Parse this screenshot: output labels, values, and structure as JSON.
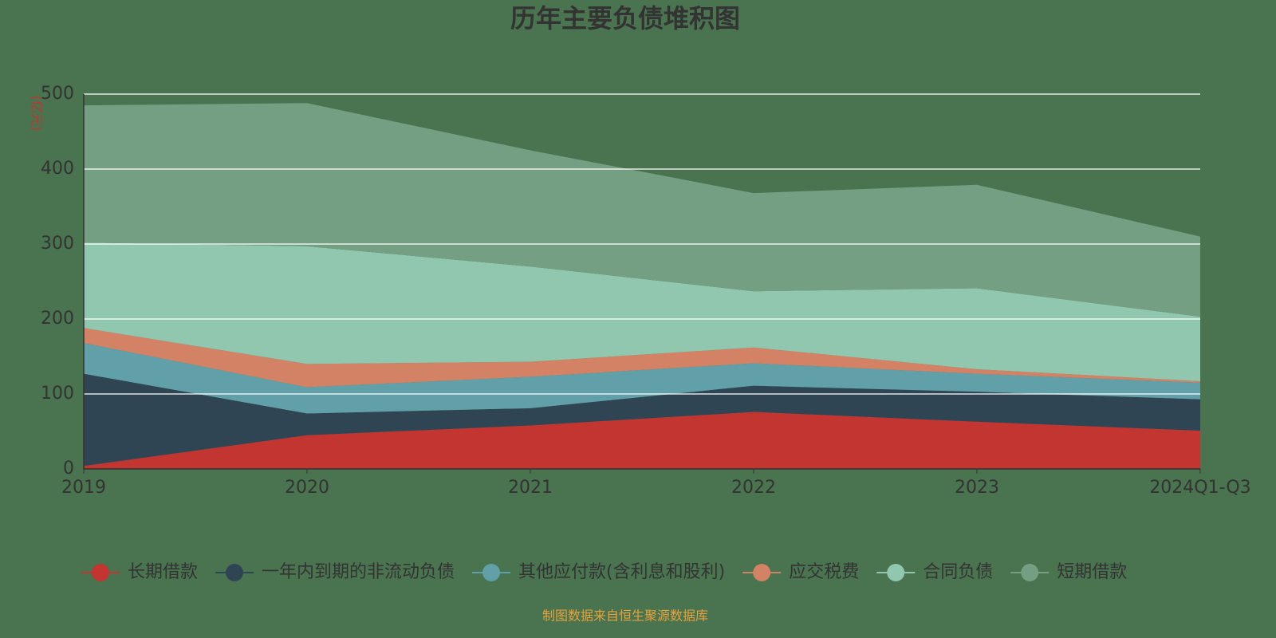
{
  "chart_data": {
    "type": "stacked_area",
    "title": "历年主要负债堆积图",
    "y_label": "(亿元)",
    "source": "制图数据来自恒生聚源数据库",
    "categories": [
      "2019",
      "2020",
      "2021",
      "2022",
      "2023",
      "2024Q1-Q3"
    ],
    "series": [
      {
        "name": "长期借款",
        "color": "#c23531",
        "values": [
          4,
          45,
          58,
          76,
          63,
          51
        ]
      },
      {
        "name": "一年内到期的非流动负债",
        "color": "#2f4554",
        "values": [
          123,
          29,
          23,
          35,
          40,
          42
        ]
      },
      {
        "name": "其他应付款(含利息和股利)",
        "color": "#61a0a8",
        "values": [
          41,
          35,
          42,
          30,
          24,
          22
        ]
      },
      {
        "name": "应交税费",
        "color": "#d48265",
        "values": [
          20,
          31,
          20,
          21,
          6,
          2
        ]
      },
      {
        "name": "合同负债",
        "color": "#91c7ae",
        "values": [
          114,
          157,
          127,
          75,
          108,
          86
        ]
      },
      {
        "name": "短期借款",
        "color": "#749f83",
        "values": [
          183,
          191,
          155,
          131,
          138,
          107
        ]
      }
    ],
    "ylim": [
      0,
      500
    ],
    "yticks": [
      0,
      100,
      200,
      300,
      400,
      500
    ],
    "grid": true
  }
}
